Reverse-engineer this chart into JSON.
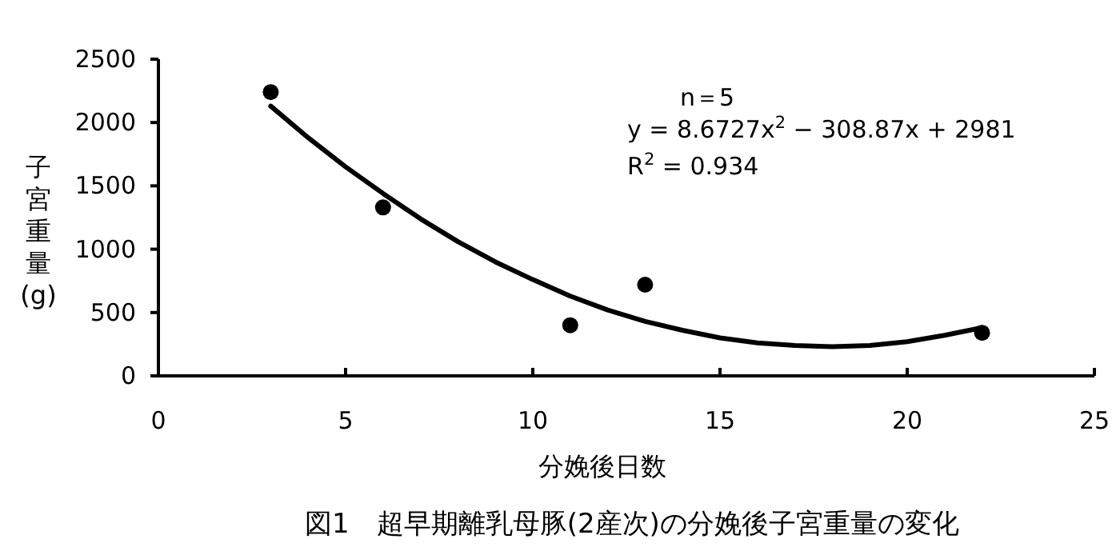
{
  "chart_data": {
    "type": "scatter",
    "title": "図1　超早期離乳母豚(2産次)の分娩後子宮重量の変化",
    "xlabel": "分娩後日数",
    "ylabel": "子宮重量(g)",
    "series": [
      {
        "color": "#000000",
        "marker": "circle",
        "x": [
          3,
          6,
          11,
          13,
          22
        ],
        "values": [
          2240,
          1330,
          400,
          720,
          340
        ]
      },
      {
        "type": "line",
        "color": "#000000",
        "marker": "none",
        "line_style": "solid",
        "x": [
          3,
          4,
          5,
          6,
          7,
          8,
          9,
          10,
          11,
          12,
          13,
          14,
          15,
          16,
          17,
          18,
          19,
          20,
          21,
          22
        ],
        "values": [
          2130,
          1880,
          1650,
          1440,
          1240,
          1060,
          900,
          760,
          630,
          520,
          430,
          360,
          300,
          260,
          240,
          230,
          240,
          270,
          320,
          380
        ]
      }
    ],
    "annotations": [
      "n＝5",
      "y = 8.6727x$^{2}$ − 308.87x + 2981",
      "R$^{2}$ = 0.934"
    ],
    "xlim": [
      0,
      25
    ],
    "xticks": [
      0,
      5,
      10,
      15,
      20,
      25
    ],
    "ylim": [
      0,
      2500
    ],
    "yticks": [
      0,
      500,
      1000,
      1500,
      2000,
      2500
    ],
    "grid": false
  }
}
